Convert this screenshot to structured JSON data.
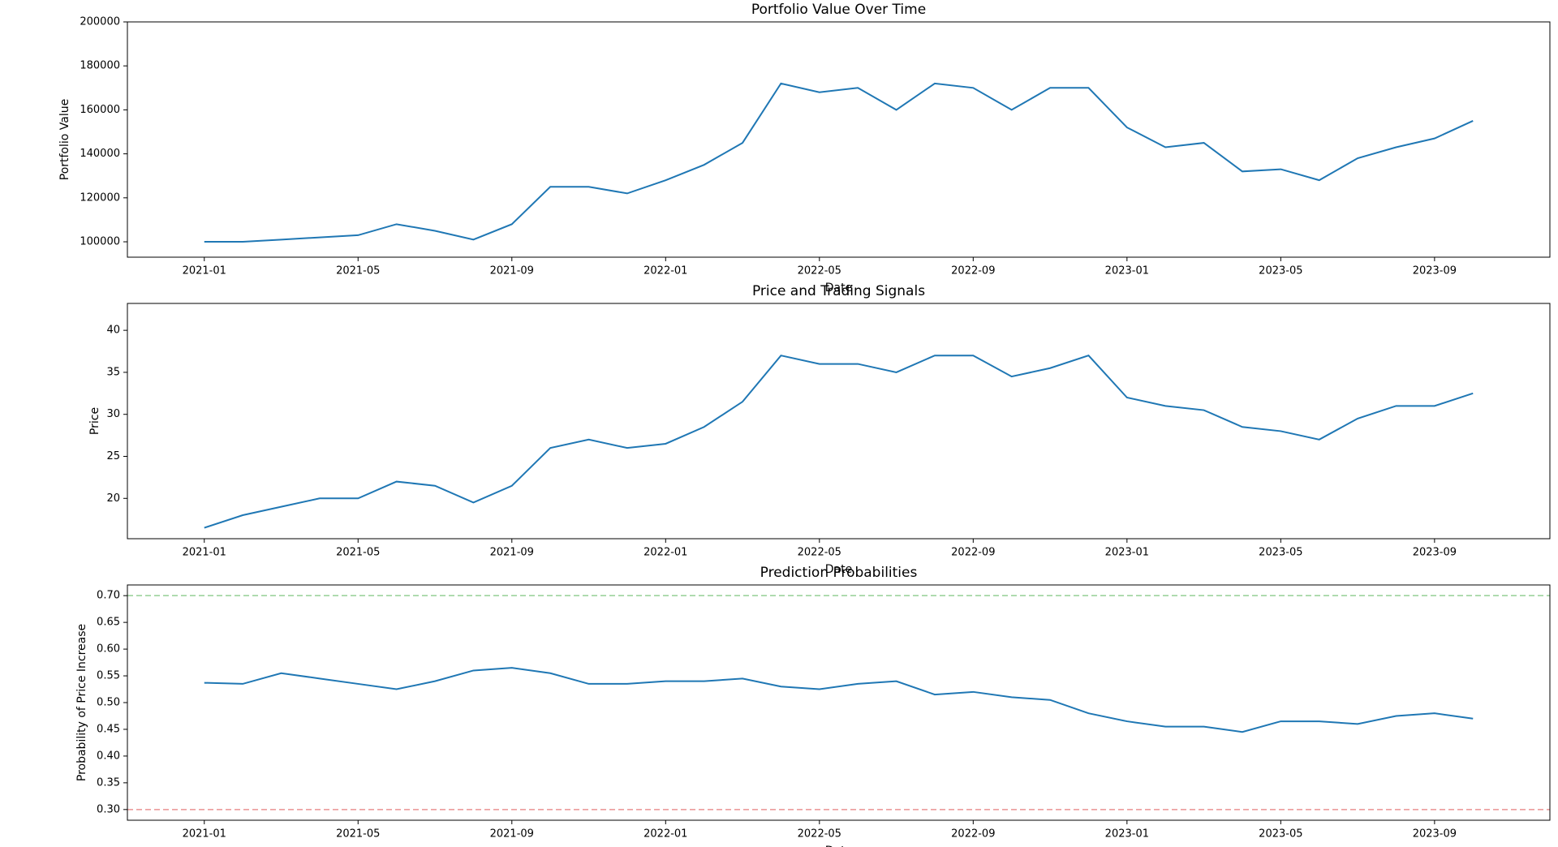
{
  "chart_data": [
    {
      "type": "line",
      "title": "Portfolio Value Over Time",
      "x_label": "Date",
      "y_label": "Portfolio Value",
      "x": [
        "2021-01",
        "2021-02",
        "2021-03",
        "2021-04",
        "2021-05",
        "2021-06",
        "2021-07",
        "2021-08",
        "2021-09",
        "2021-10",
        "2021-11",
        "2021-12",
        "2022-01",
        "2022-02",
        "2022-03",
        "2022-04",
        "2022-05",
        "2022-06",
        "2022-07",
        "2022-08",
        "2022-09",
        "2022-10",
        "2022-11",
        "2022-12",
        "2023-01",
        "2023-02",
        "2023-03",
        "2023-04",
        "2023-05",
        "2023-06",
        "2023-07",
        "2023-08",
        "2023-09",
        "2023-10"
      ],
      "series": [
        {
          "name": "Portfolio Value",
          "color": "#1f77b4",
          "values": [
            100000,
            100000,
            101000,
            102000,
            103000,
            108000,
            105000,
            101000,
            108000,
            125000,
            125000,
            122000,
            128000,
            135000,
            145000,
            172000,
            168000,
            170000,
            160000,
            172000,
            170000,
            160000,
            170000,
            170000,
            152000,
            143000,
            145000,
            132000,
            133000,
            128000,
            138000,
            143000,
            147000,
            155000
          ]
        }
      ],
      "xlim": [
        "2020-11",
        "2023-12"
      ],
      "xticks": [
        "2021-01",
        "2021-05",
        "2021-09",
        "2022-01",
        "2022-05",
        "2022-09",
        "2023-01",
        "2023-05",
        "2023-09"
      ],
      "ylim": [
        93000,
        200000
      ],
      "yticks": [
        100000,
        120000,
        140000,
        160000,
        180000,
        200000
      ]
    },
    {
      "type": "line",
      "title": "Price and Trading Signals",
      "x_label": "Date",
      "y_label": "Price",
      "x": [
        "2021-01",
        "2021-02",
        "2021-03",
        "2021-04",
        "2021-05",
        "2021-06",
        "2021-07",
        "2021-08",
        "2021-09",
        "2021-10",
        "2021-11",
        "2021-12",
        "2022-01",
        "2022-02",
        "2022-03",
        "2022-04",
        "2022-05",
        "2022-06",
        "2022-07",
        "2022-08",
        "2022-09",
        "2022-10",
        "2022-11",
        "2022-12",
        "2023-01",
        "2023-02",
        "2023-03",
        "2023-04",
        "2023-05",
        "2023-06",
        "2023-07",
        "2023-08",
        "2023-09",
        "2023-10"
      ],
      "series": [
        {
          "name": "Price",
          "color": "#1f77b4",
          "values": [
            16.5,
            18,
            19,
            20,
            20,
            22,
            21.5,
            19.5,
            21.5,
            26,
            27,
            26,
            26.5,
            28.5,
            31.5,
            37,
            36,
            36,
            35,
            37,
            37,
            34.5,
            35.5,
            37,
            32,
            31,
            30.5,
            28.5,
            28,
            27,
            29.5,
            31,
            31,
            32.5
          ]
        }
      ],
      "xlim": [
        "2020-11",
        "2023-12"
      ],
      "xticks": [
        "2021-01",
        "2021-05",
        "2021-09",
        "2022-01",
        "2022-05",
        "2022-09",
        "2023-01",
        "2023-05",
        "2023-09"
      ],
      "ylim": [
        15.2,
        43.2
      ],
      "yticks": [
        20,
        25,
        30,
        35,
        40
      ]
    },
    {
      "type": "line",
      "title": "Prediction Probabilities",
      "x_label": "Date",
      "y_label": "Probability of Price Increase",
      "x": [
        "2021-01",
        "2021-02",
        "2021-03",
        "2021-04",
        "2021-05",
        "2021-06",
        "2021-07",
        "2021-08",
        "2021-09",
        "2021-10",
        "2021-11",
        "2021-12",
        "2022-01",
        "2022-02",
        "2022-03",
        "2022-04",
        "2022-05",
        "2022-06",
        "2022-07",
        "2022-08",
        "2022-09",
        "2022-10",
        "2022-11",
        "2022-12",
        "2023-01",
        "2023-02",
        "2023-03",
        "2023-04",
        "2023-05",
        "2023-06",
        "2023-07",
        "2023-08",
        "2023-09",
        "2023-10"
      ],
      "series": [
        {
          "name": "Probability",
          "color": "#1f77b4",
          "values": [
            0.537,
            0.535,
            0.555,
            0.545,
            0.535,
            0.525,
            0.54,
            0.56,
            0.565,
            0.555,
            0.535,
            0.535,
            0.54,
            0.54,
            0.545,
            0.53,
            0.525,
            0.535,
            0.54,
            0.515,
            0.52,
            0.51,
            0.505,
            0.48,
            0.465,
            0.455,
            0.455,
            0.445,
            0.465,
            0.465,
            0.46,
            0.475,
            0.48,
            0.47
          ]
        }
      ],
      "hlines": [
        {
          "value": 0.7,
          "color": "#2ca02c"
        },
        {
          "value": 0.3,
          "color": "#d62728"
        }
      ],
      "xlim": [
        "2020-11",
        "2023-12"
      ],
      "xticks": [
        "2021-01",
        "2021-05",
        "2021-09",
        "2022-01",
        "2022-05",
        "2022-09",
        "2023-01",
        "2023-05",
        "2023-09"
      ],
      "ylim": [
        0.28,
        0.72
      ],
      "yticks": [
        {
          "value": 0.3,
          "label": "0.30"
        },
        0.35,
        {
          "value": 0.4,
          "label": "0.40"
        },
        0.45,
        {
          "value": 0.5,
          "label": "0.50"
        },
        0.55,
        {
          "value": 0.6,
          "label": "0.60"
        },
        0.65,
        {
          "value": 0.7,
          "label": "0.70"
        }
      ]
    }
  ]
}
